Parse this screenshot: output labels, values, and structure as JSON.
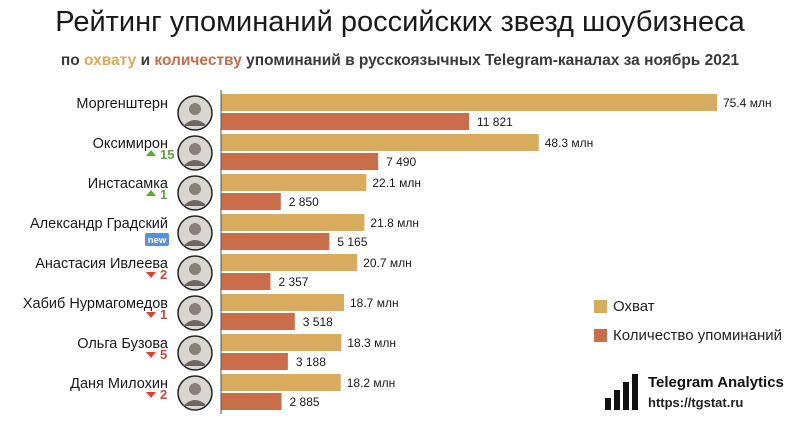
{
  "header": {
    "title": "Рейтинг упоминаний российских звезд шоубизнеса",
    "sub_pre": "по ",
    "sub_c1": "охвату",
    "sub_mid": " и ",
    "sub_c2": "количеству",
    "sub_post": " упоминаний в русскоязычных Telegram-каналах за ноябрь 2021"
  },
  "colors": {
    "reach": "#d9ab5d",
    "mentions": "#c96e4b",
    "up": "#5aa83a",
    "down": "#d64534",
    "new_badge": "#5b8fd6",
    "axis": "#555555"
  },
  "chart_data": {
    "type": "bar",
    "orientation": "horizontal",
    "title": "Рейтинг упоминаний российских звезд шоубизнеса",
    "subtitle": "по охвату и количеству упоминаний в русскоязычных Telegram-каналах за ноябрь 2021",
    "categories": [
      "Моргенштерн",
      "Оксимирон",
      "Инстасамка",
      "Александр Градский",
      "Анастасия Ивлеева",
      "Хабиб Нурмагомедов",
      "Ольга Бузова",
      "Даня Милохин"
    ],
    "series": [
      {
        "name": "Охват",
        "values": [
          75.4,
          48.3,
          22.1,
          21.8,
          20.7,
          18.7,
          18.3,
          18.2
        ],
        "labels": [
          "75.4 млн",
          "48.3 млн",
          "22.1 млн",
          "21.8 млн",
          "20.7 млн",
          "18.7 млн",
          "18.3 млн",
          "18.2 млн"
        ]
      },
      {
        "name": "Количество упоминаний",
        "values": [
          11821,
          7490,
          2850,
          5165,
          2357,
          3518,
          3188,
          2885
        ],
        "labels": [
          "11 821",
          "7 490",
          "2 850",
          "5 165",
          "2 357",
          "3 518",
          "3 188",
          "2 885"
        ]
      }
    ],
    "rank_change": [
      {
        "dir": "none",
        "text": ""
      },
      {
        "dir": "up",
        "text": "15"
      },
      {
        "dir": "up",
        "text": "1"
      },
      {
        "dir": "new",
        "text": "new"
      },
      {
        "dir": "down",
        "text": "2"
      },
      {
        "dir": "down",
        "text": "1"
      },
      {
        "dir": "down",
        "text": "5"
      },
      {
        "dir": "down",
        "text": "2"
      }
    ],
    "legend_position": "right",
    "grid": false
  },
  "legend": {
    "reach": "Охват",
    "mentions": "Количество упоминаний"
  },
  "brand": {
    "name": "Telegram Analytics",
    "url": "https://tgstat.ru",
    "logo_icon": "bar-chart-logo-icon"
  }
}
